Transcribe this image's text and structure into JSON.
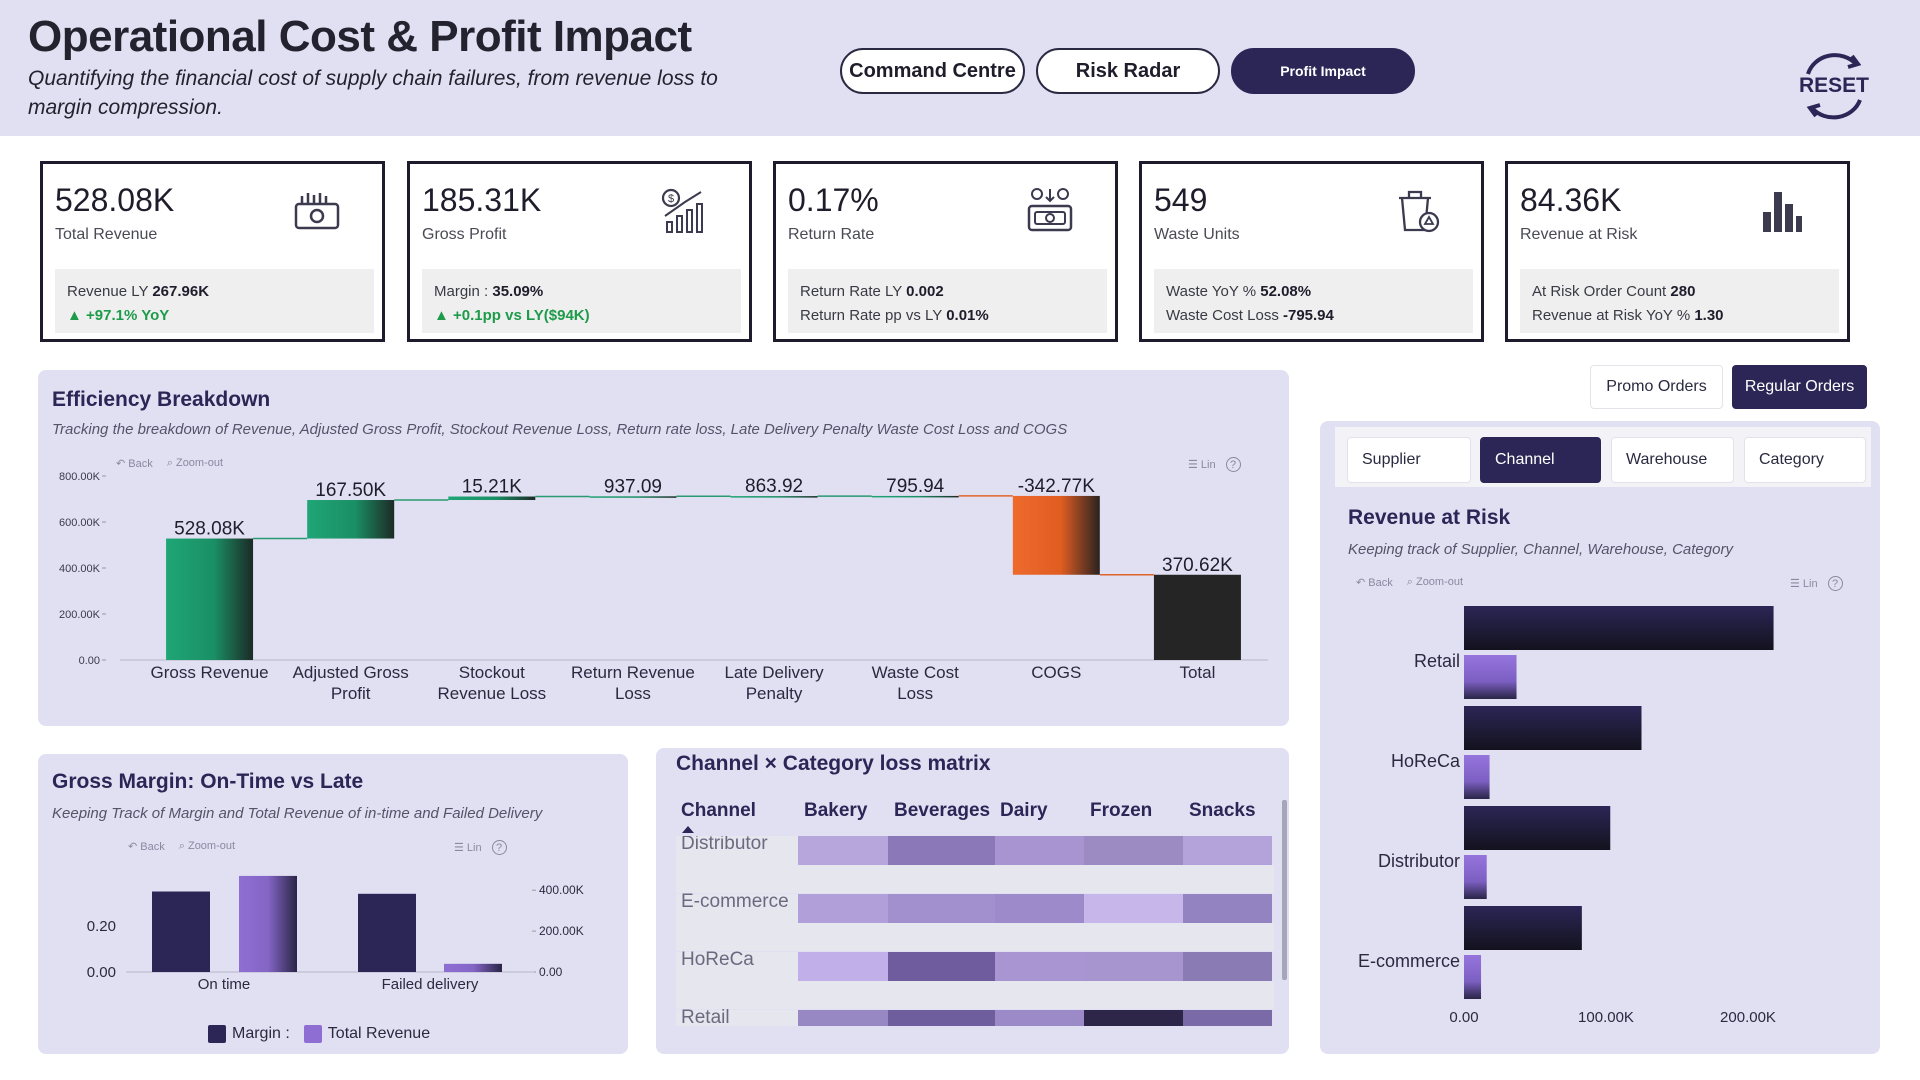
{
  "header": {
    "title": "Operational Cost & Profit Impact",
    "subtitle": "Quantifying the financial cost of supply chain failures, from revenue loss to margin compression.",
    "nav": [
      {
        "label": "Command Centre"
      },
      {
        "label": "Risk Radar"
      },
      {
        "label": "Profit Impact"
      }
    ],
    "reset_label": "RESET"
  },
  "kpis": [
    {
      "value": "528.08K",
      "label": "Total Revenue",
      "icon": "money-stack-icon",
      "line1_label": "Revenue LY ",
      "line1_value": "267.96K",
      "line2": "▲ +97.1% YoY"
    },
    {
      "value": "185.31K",
      "label": "Gross Profit",
      "icon": "profit-chart-icon",
      "line1_label": "Margin : ",
      "line1_value": "35.09%",
      "line2": "▲ +0.1pp vs LY($94K)"
    },
    {
      "value": "0.17%",
      "label": "Return Rate",
      "icon": "returns-money-icon",
      "line1_label": "Return Rate LY ",
      "line1_value": "0.002",
      "line2_label": "Return Rate pp vs LY ",
      "line2_value": "0.01%"
    },
    {
      "value": "549",
      "label": "Waste Units",
      "icon": "waste-bin-icon",
      "line1_label": "Waste YoY % ",
      "line1_value": "52.08%",
      "line2_label": "Waste Cost Loss ",
      "line2_value": "-795.94"
    },
    {
      "value": "84.36K",
      "label": "Revenue at Risk",
      "icon": "bar-graph-icon",
      "line1_label": "At Risk Order Count ",
      "line1_value": "280",
      "line2_label": "Revenue at Risk YoY % ",
      "line2_value": "1.30"
    }
  ],
  "efficiency": {
    "title": "Efficiency Breakdown",
    "subtitle": "Tracking the breakdown of Revenue, Adjusted Gross Profit, Stockout Revenue Loss, Return rate loss, Late Delivery Penalty Waste Cost Loss and COGS",
    "tools": {
      "back": "Back",
      "zoom": "Zoom-out",
      "lin": "Lin"
    }
  },
  "gross_margin": {
    "title": "Gross Margin: On-Time vs Late",
    "subtitle": "Keeping Track of Margin and Total Revenue of in-time and Failed Delivery",
    "tools": {
      "back": "Back",
      "zoom": "Zoom-out",
      "lin": "Lin"
    },
    "legend": {
      "margin": "Margin :",
      "revenue": "Total Revenue"
    }
  },
  "matrix": {
    "title": "Channel × Category loss matrix",
    "columns": [
      "Channel",
      "Bakery",
      "Beverages",
      "Dairy",
      "Frozen",
      "Snacks"
    ],
    "rows": [
      {
        "channel": "Distributor",
        "colors": [
          "#b6a6dc",
          "#8b78b8",
          "#a894d0",
          "#9c8bc2",
          "#b3a3da"
        ]
      },
      {
        "channel": "E-commerce",
        "colors": [
          "#b09fd9",
          "#a28fcd",
          "#9d8acb",
          "#c6b6ea",
          "#9483c1"
        ]
      },
      {
        "channel": "HoReCa",
        "colors": [
          "#c0afe8",
          "#6e5c9e",
          "#a895d1",
          "#a795d0",
          "#8b7bb5"
        ]
      },
      {
        "channel": "Retail",
        "colors": [
          "#9787c3",
          "#6f5e9e",
          "#9c89c8",
          "#2e2648",
          "#7a6aa8"
        ]
      }
    ]
  },
  "orders": {
    "promo": "Promo Orders",
    "regular": "Regular Orders"
  },
  "risk": {
    "tabs": [
      "Supplier",
      "Channel",
      "Warehouse",
      "Category"
    ],
    "title": "Revenue at Risk",
    "subtitle": "Keeping track of Supplier, Channel, Warehouse, Category",
    "tools": {
      "back": "Back",
      "zoom": "Zoom-out",
      "lin": "Lin"
    }
  },
  "colors": {
    "primary": "#2b2656",
    "panel_bg": "#e1e0f3",
    "waterfall_green": "#1fa676",
    "waterfall_orange": "#ee6a2c",
    "total_dark": "#252525",
    "light_purple": "#8f6ed3",
    "dark_purple": "#2b2656"
  },
  "chart_data": [
    {
      "type": "bar",
      "name": "efficiency-waterfall",
      "categories": [
        "Gross Revenue",
        "Adjusted Gross Profit",
        "Stockout Revenue Loss",
        "Return Revenue Loss",
        "Late Delivery Penalty",
        "Waste Cost Loss",
        "COGS",
        "Total"
      ],
      "values": [
        528080,
        167500,
        15210,
        937.09,
        863.92,
        795.94,
        -342770,
        370620
      ],
      "data_labels": [
        "528.08K",
        "167.50K",
        "15.21K",
        "937.09",
        "863.92",
        "795.94",
        "-342.77K",
        "370.62K"
      ],
      "yticks": [
        "0.00",
        "200.00K",
        "400.00K",
        "600.00K",
        "800.00K"
      ],
      "ylim": [
        0,
        800000
      ]
    },
    {
      "type": "bar",
      "name": "gross-margin-on-time-vs-late",
      "categories": [
        "On time",
        "Failed delivery"
      ],
      "series": [
        {
          "name": "Margin :",
          "values": [
            0.35,
            0.34
          ],
          "axis": "left"
        },
        {
          "name": "Total Revenue",
          "values": [
            470000,
            40000
          ],
          "axis": "right"
        }
      ],
      "yticks_left": [
        "0.00",
        "0.20"
      ],
      "ylim_left": [
        0,
        0.4
      ],
      "yticks_right": [
        "0.00",
        "200.00K",
        "400.00K"
      ],
      "ylim_right": [
        0,
        450000
      ]
    },
    {
      "type": "bar",
      "name": "revenue-at-risk",
      "orientation": "horizontal",
      "categories": [
        "Retail",
        "HoReCa",
        "Distributor",
        "E-commerce"
      ],
      "series": [
        {
          "values": [
            218000,
            125000,
            103000,
            83000
          ]
        },
        {
          "values": [
            37000,
            18000,
            16000,
            12000
          ]
        }
      ],
      "xticks": [
        "0.00",
        "100.00K",
        "200.00K"
      ],
      "xlim": [
        0,
        240000
      ]
    }
  ]
}
